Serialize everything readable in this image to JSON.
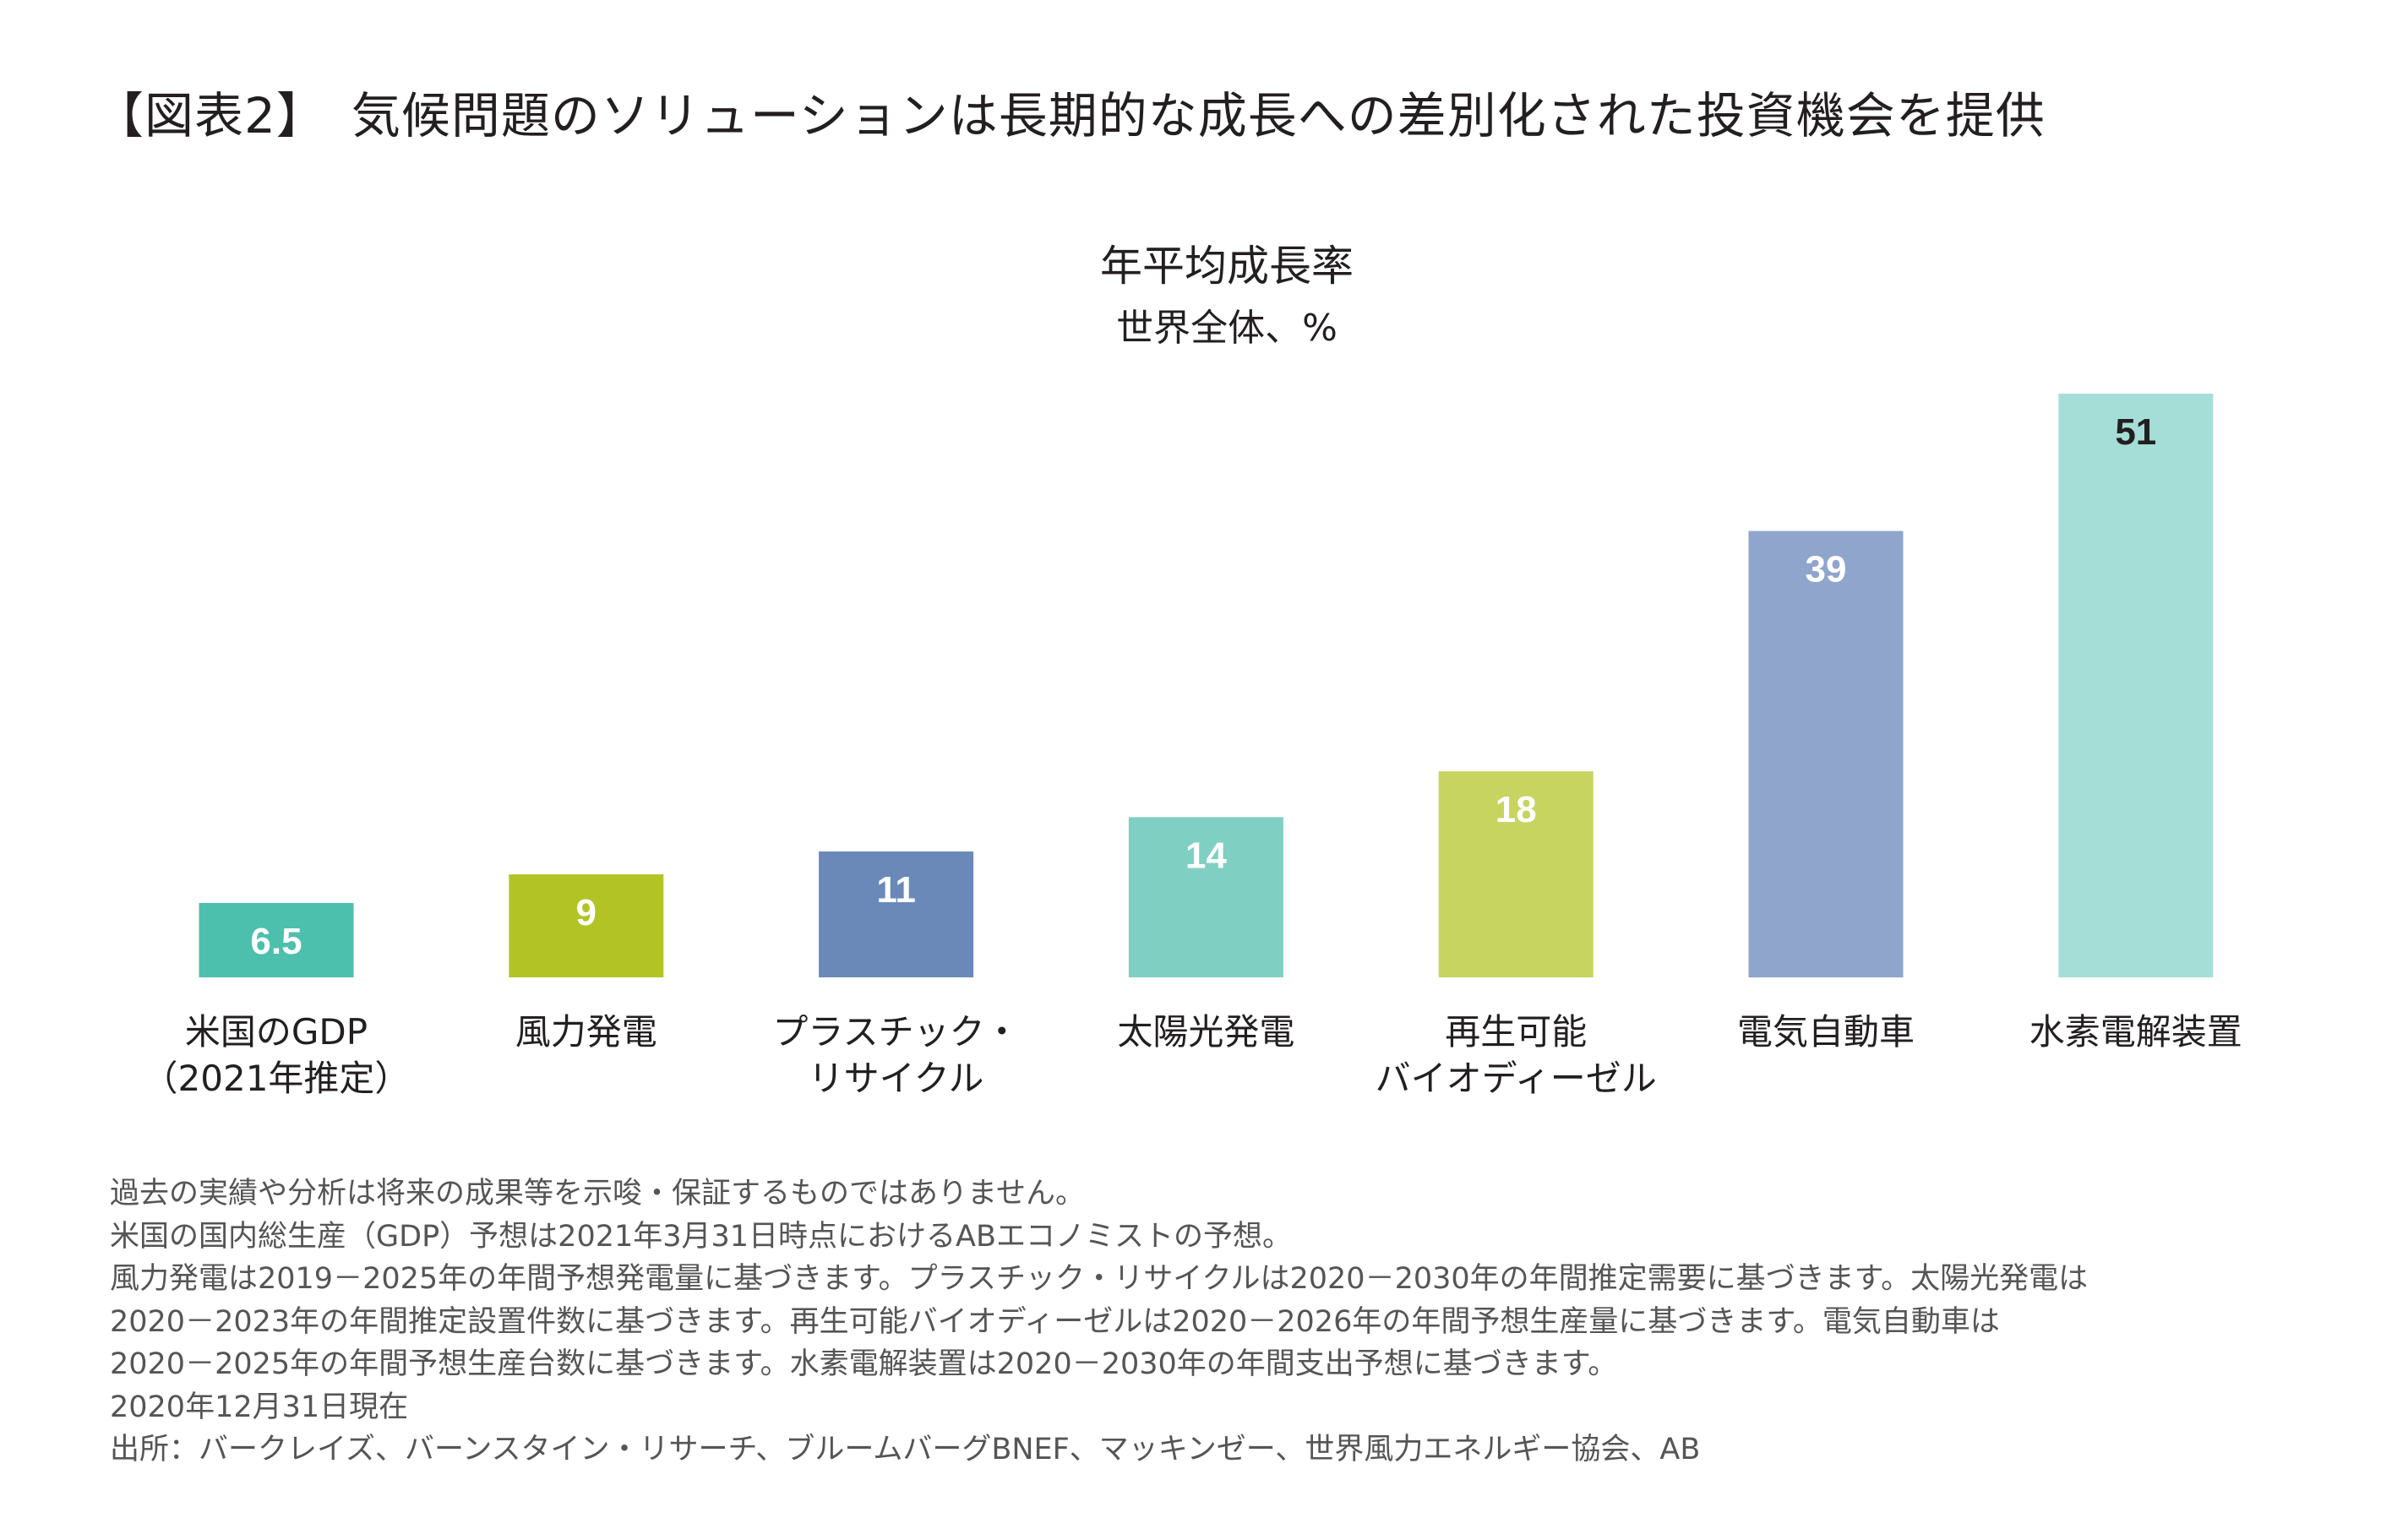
{
  "title": "【図表2】　気候問題のソリューションは長期的な成長への差別化された投資機会を提供",
  "chart_data": {
    "type": "bar",
    "title": "年平均成長率",
    "subtitle": "世界全体、%",
    "categories": [
      [
        "米国のGDP",
        "（2021年推定）"
      ],
      [
        "風力発電"
      ],
      [
        "プラスチック・",
        "リサイクル"
      ],
      [
        "太陽光発電"
      ],
      [
        "再生可能",
        "バイオディーゼル"
      ],
      [
        "電気自動車"
      ],
      [
        "水素電解装置"
      ]
    ],
    "values": [
      6.5,
      9,
      11,
      14,
      18,
      39,
      51
    ],
    "value_labels": [
      "6.5",
      "9",
      "11",
      "14",
      "18",
      "39",
      "51"
    ],
    "colors": [
      "#4dbfad",
      "#b2c425",
      "#6a89b9",
      "#7fd0c2",
      "#c7d45f",
      "#8fa5cb",
      "#a5ded6"
    ],
    "label_colors": [
      "#ffffff",
      "#ffffff",
      "#ffffff",
      "#ffffff",
      "#ffffff",
      "#ffffff",
      "#231f20"
    ],
    "ylim": [
      0,
      51
    ],
    "grid": false
  },
  "footer": [
    "過去の実績や分析は将来の成果等を示唆・保証するものではありません。",
    "米国の国内総生産（GDP）予想は2021年3月31日時点におけるABエコノミストの予想。",
    "風力発電は2019－2025年の年間予想発電量に基づきます。プラスチック・リサイクルは2020－2030年の年間推定需要に基づきます。太陽光発電は",
    "2020－2023年の年間推定設置件数に基づきます。再生可能バイオディーゼルは2020－2026年の年間予想生産量に基づきます。電気自動車は",
    "2020－2025年の年間予想生産台数に基づきます。水素電解装置は2020－2030年の年間支出予想に基づきます。",
    "2020年12月31日現在",
    "出所：バークレイズ、バーンスタイン・リサーチ、ブルームバーグBNEF、マッキンゼー、世界風力エネルギー協会、AB"
  ]
}
